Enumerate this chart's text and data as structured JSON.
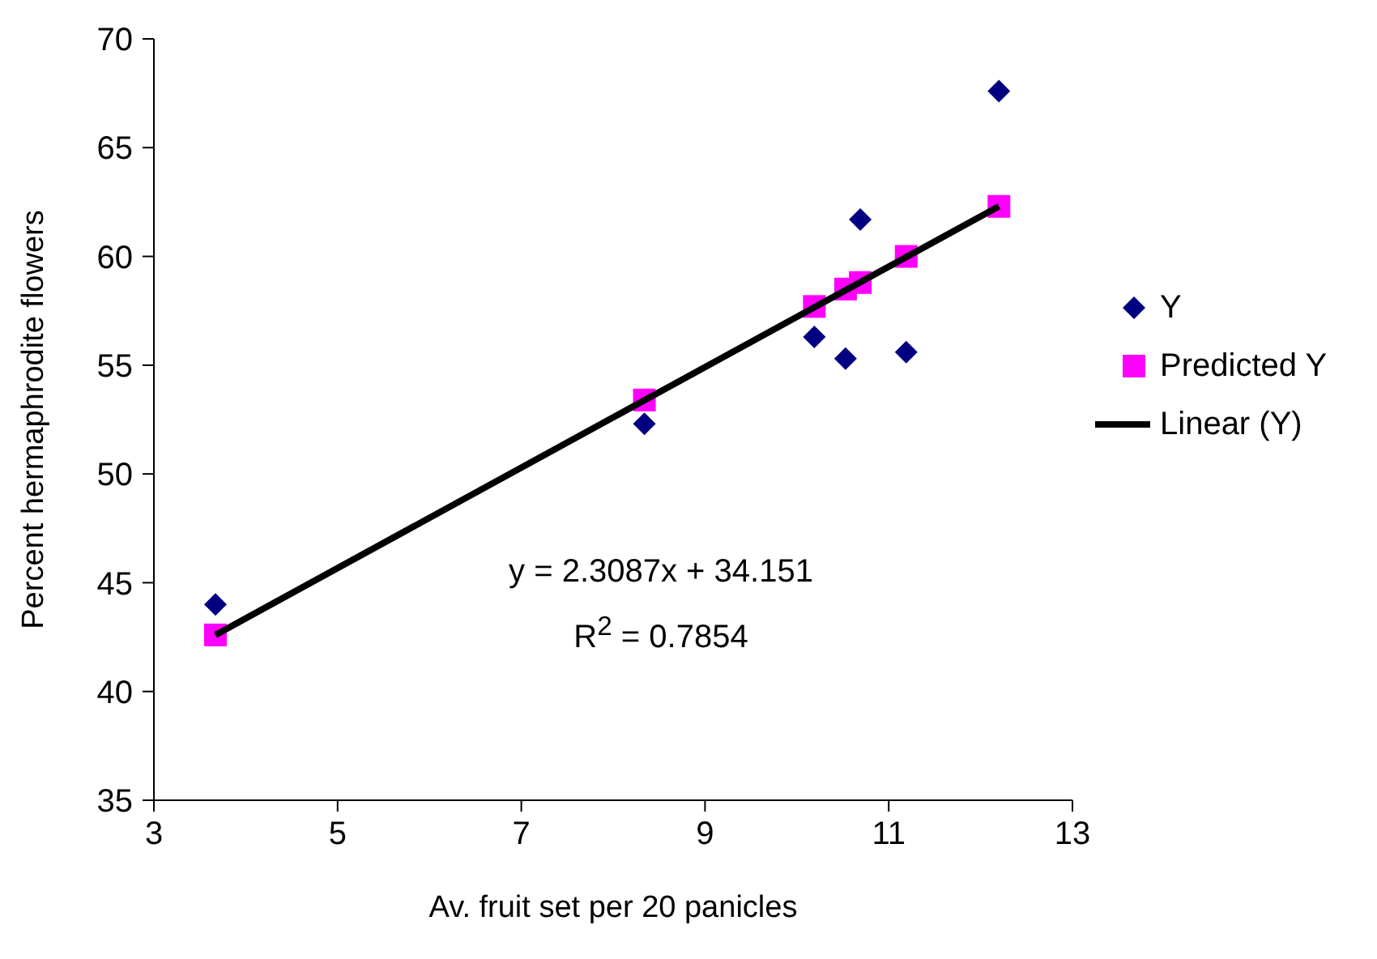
{
  "chart_data": {
    "type": "scatter",
    "xlabel": "Av. fruit set per 20 panicles",
    "ylabel": "Percent hermaphrodite flowers",
    "x": [
      3.67,
      8.34,
      10.19,
      10.53,
      10.69,
      11.19,
      12.2
    ],
    "series": [
      {
        "name": "Y",
        "marker": "diamond",
        "color": "#000080",
        "values": [
          44.0,
          52.3,
          56.3,
          55.3,
          61.7,
          55.6,
          67.6
        ]
      },
      {
        "name": "Predicted Y",
        "marker": "square",
        "color": "#ff00ff",
        "values": [
          42.6,
          53.4,
          57.7,
          58.5,
          58.8,
          60.0,
          62.3
        ]
      },
      {
        "name": "Linear (Y)",
        "type": "line",
        "marker": "none",
        "line_style": "solid",
        "color": "#000000",
        "x": [
          3.67,
          12.2
        ],
        "values": [
          42.6,
          62.3
        ]
      }
    ],
    "xlim": [
      3,
      13
    ],
    "xticks": [
      3,
      5,
      7,
      9,
      11,
      13
    ],
    "ylim": [
      35,
      70
    ],
    "yticks": [
      35,
      40,
      45,
      50,
      55,
      60,
      65,
      70
    ],
    "grid": false,
    "legend": "right",
    "annotations": [
      "y = 2.3087x + 34.151",
      "R$^{2}$ = 0.7854"
    ]
  }
}
